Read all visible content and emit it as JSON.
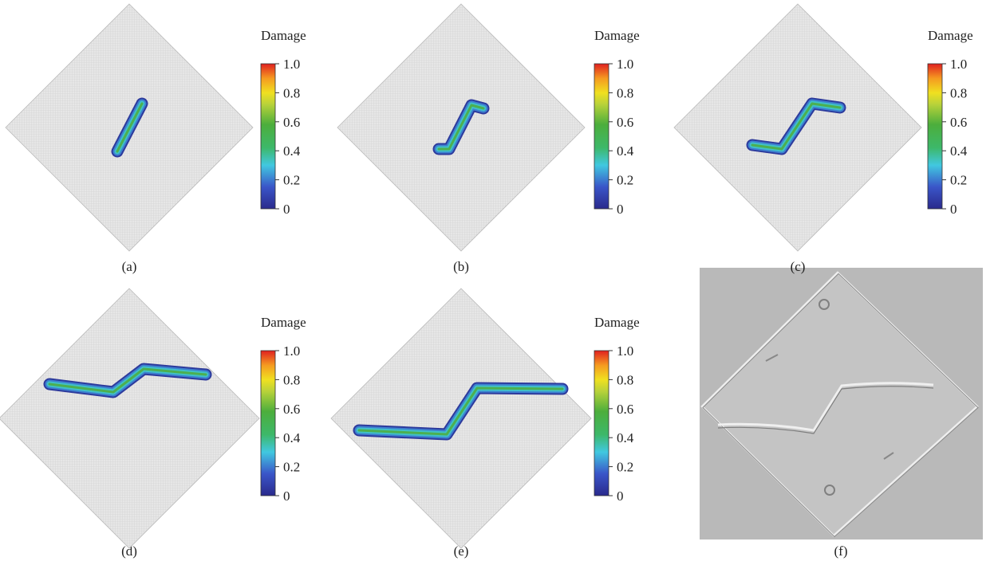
{
  "panels": [
    {
      "label": "(a)",
      "colorbar": {
        "title": "Damage",
        "ticks": [
          "1.0",
          "0.8",
          "0.6",
          "0.4",
          "0.2",
          "0"
        ]
      }
    },
    {
      "label": "(b)",
      "colorbar": {
        "title": "Damage",
        "ticks": [
          "1.0",
          "0.8",
          "0.6",
          "0.4",
          "0.2",
          "0"
        ]
      }
    },
    {
      "label": "(c)",
      "colorbar": {
        "title": "Damage",
        "ticks": [
          "1.0",
          "0.8",
          "0.6",
          "0.4",
          "0.2",
          "0"
        ]
      }
    },
    {
      "label": "(d)",
      "colorbar": {
        "title": "Damage",
        "ticks": [
          "1.0",
          "0.8",
          "0.6",
          "0.4",
          "0.2",
          "0"
        ]
      }
    },
    {
      "label": "(e)",
      "colorbar": {
        "title": "Damage",
        "ticks": [
          "1.0",
          "0.8",
          "0.6",
          "0.4",
          "0.2",
          "0"
        ]
      }
    },
    {
      "label": "(f)"
    }
  ]
}
